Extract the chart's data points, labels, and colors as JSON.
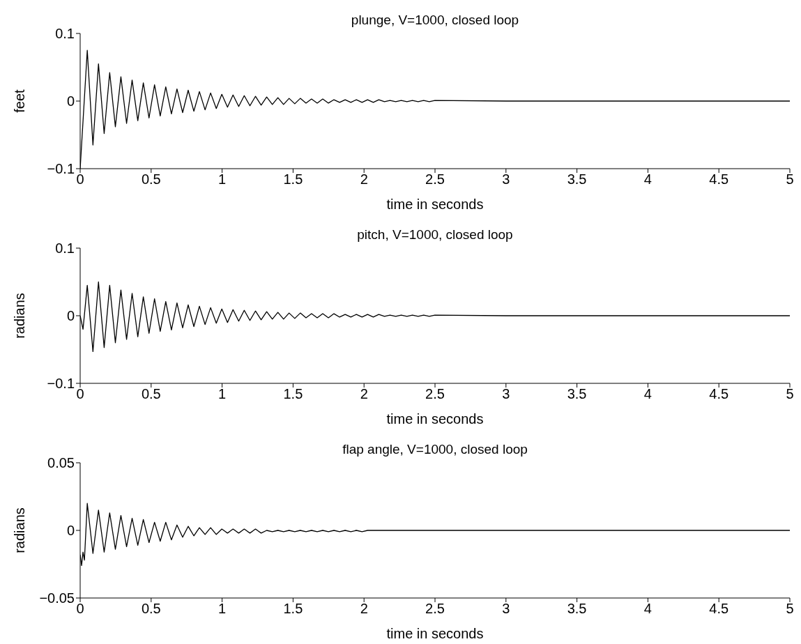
{
  "chart_data": [
    {
      "type": "line",
      "title": "plunge, V=1000, closed loop",
      "xlabel": "time in seconds",
      "ylabel": "feet",
      "xlim": [
        0,
        5
      ],
      "xticks": [
        0,
        0.5,
        1,
        1.5,
        2,
        2.5,
        3,
        3.5,
        4,
        4.5,
        5
      ],
      "ylim": [
        -0.1,
        0.1
      ],
      "yticks": [
        -0.1,
        0,
        0.1
      ],
      "series": [
        {
          "color": "#000000",
          "x": [
            0,
            0.05,
            0.09,
            0.129,
            0.169,
            0.208,
            0.248,
            0.287,
            0.327,
            0.366,
            0.406,
            0.445,
            0.485,
            0.524,
            0.564,
            0.603,
            0.643,
            0.682,
            0.722,
            0.761,
            0.801,
            0.84,
            0.88,
            0.919,
            0.959,
            0.998,
            1.038,
            1.077,
            1.117,
            1.156,
            1.196,
            1.235,
            1.275,
            1.314,
            1.354,
            1.393,
            1.433,
            1.472,
            1.512,
            1.551,
            1.591,
            1.63,
            1.67,
            1.709,
            1.749,
            1.788,
            1.828,
            1.867,
            1.907,
            1.946,
            1.986,
            2.025,
            2.065,
            2.104,
            2.144,
            2.183,
            2.223,
            2.262,
            2.302,
            2.341,
            2.381,
            2.42,
            2.46,
            2.499,
            3,
            5
          ],
          "values": [
            -0.1,
            0.075,
            -0.065,
            0.055,
            -0.048,
            0.042,
            -0.038,
            0.036,
            -0.033,
            0.031,
            -0.029,
            0.027,
            -0.025,
            0.024,
            -0.022,
            0.021,
            -0.019,
            0.018,
            -0.017,
            0.016,
            -0.015,
            0.014,
            -0.013,
            0.012,
            -0.011,
            0.01,
            -0.009,
            0.009,
            -0.008,
            0.008,
            -0.007,
            0.007,
            -0.006,
            0.006,
            -0.005,
            0.005,
            -0.005,
            0.004,
            -0.004,
            0.004,
            -0.003,
            0.003,
            -0.003,
            0.003,
            -0.003,
            0.002,
            -0.002,
            0.002,
            -0.002,
            0.002,
            -0.002,
            0.002,
            -0.002,
            0.002,
            -0.001,
            0.001,
            -0.001,
            0.001,
            -0.001,
            0.001,
            -0.001,
            0.001,
            -0.001,
            0.001,
            0,
            0
          ]
        }
      ]
    },
    {
      "type": "line",
      "title": "pitch, V=1000, closed loop",
      "xlabel": "time in seconds",
      "ylabel": "radians",
      "xlim": [
        0,
        5
      ],
      "xticks": [
        0,
        0.5,
        1,
        1.5,
        2,
        2.5,
        3,
        3.5,
        4,
        4.5,
        5
      ],
      "ylim": [
        -0.1,
        0.1
      ],
      "yticks": [
        -0.1,
        0,
        0.1
      ],
      "series": [
        {
          "color": "#000000",
          "x": [
            0,
            0.02,
            0.05,
            0.09,
            0.129,
            0.169,
            0.208,
            0.248,
            0.287,
            0.327,
            0.366,
            0.406,
            0.445,
            0.485,
            0.524,
            0.564,
            0.603,
            0.643,
            0.682,
            0.722,
            0.761,
            0.801,
            0.84,
            0.88,
            0.919,
            0.959,
            0.998,
            1.038,
            1.077,
            1.117,
            1.156,
            1.196,
            1.235,
            1.275,
            1.314,
            1.354,
            1.393,
            1.433,
            1.472,
            1.512,
            1.551,
            1.591,
            1.63,
            1.67,
            1.709,
            1.749,
            1.788,
            1.828,
            1.867,
            1.907,
            1.946,
            1.986,
            2.025,
            2.065,
            2.104,
            2.144,
            2.183,
            2.223,
            2.262,
            2.302,
            2.341,
            2.381,
            2.42,
            2.46,
            2.499,
            3,
            5
          ],
          "values": [
            0,
            -0.02,
            0.045,
            -0.053,
            0.05,
            -0.047,
            0.045,
            -0.04,
            0.038,
            -0.035,
            0.033,
            -0.031,
            0.028,
            -0.026,
            0.025,
            -0.023,
            0.021,
            -0.021,
            0.019,
            -0.018,
            0.016,
            -0.016,
            0.014,
            -0.013,
            0.012,
            -0.011,
            0.01,
            -0.01,
            0.009,
            -0.008,
            0.008,
            -0.007,
            0.007,
            -0.006,
            0.006,
            -0.005,
            0.005,
            -0.005,
            0.004,
            -0.004,
            0.004,
            -0.003,
            0.003,
            -0.003,
            0.003,
            -0.003,
            0.003,
            -0.002,
            0.002,
            -0.002,
            0.002,
            -0.002,
            0.002,
            -0.002,
            0.002,
            -0.001,
            0.001,
            -0.001,
            0.001,
            -0.001,
            0.001,
            -0.001,
            0.001,
            -0.001,
            0.001,
            0,
            0
          ]
        }
      ]
    },
    {
      "type": "line",
      "title": "flap angle, V=1000, closed loop",
      "xlabel": "time in seconds",
      "ylabel": "radians",
      "xlim": [
        0,
        5
      ],
      "xticks": [
        0,
        0.5,
        1,
        1.5,
        2,
        2.5,
        3,
        3.5,
        4,
        4.5,
        5
      ],
      "ylim": [
        -0.05,
        0.05
      ],
      "yticks": [
        -0.05,
        0,
        0.05
      ],
      "series": [
        {
          "color": "#000000",
          "x": [
            0,
            0.01,
            0.02,
            0.03,
            0.05,
            0.09,
            0.129,
            0.169,
            0.208,
            0.248,
            0.287,
            0.327,
            0.366,
            0.406,
            0.445,
            0.485,
            0.524,
            0.564,
            0.603,
            0.643,
            0.682,
            0.722,
            0.761,
            0.801,
            0.84,
            0.88,
            0.919,
            0.959,
            0.998,
            1.038,
            1.077,
            1.117,
            1.156,
            1.196,
            1.235,
            1.275,
            1.314,
            1.354,
            1.393,
            1.433,
            1.472,
            1.512,
            1.551,
            1.591,
            1.63,
            1.67,
            1.709,
            1.749,
            1.788,
            1.828,
            1.867,
            1.907,
            1.946,
            1.986,
            2.025,
            5
          ],
          "values": [
            -0.018,
            -0.026,
            -0.016,
            -0.022,
            0.02,
            -0.017,
            0.015,
            -0.016,
            0.013,
            -0.014,
            0.011,
            -0.012,
            0.009,
            -0.011,
            0.008,
            -0.009,
            0.006,
            -0.008,
            0.006,
            -0.007,
            0.004,
            -0.005,
            0.003,
            -0.004,
            0.002,
            -0.003,
            0.002,
            -0.003,
            0.001,
            -0.002,
            0.001,
            -0.002,
            0.001,
            -0.002,
            0.001,
            -0.002,
            0,
            -0.001,
            0,
            -0.001,
            0,
            -0.001,
            0,
            -0.001,
            0,
            -0.001,
            0,
            -0.001,
            0,
            -0.001,
            0,
            -0.001,
            0,
            -0.001,
            0,
            0
          ]
        }
      ]
    }
  ]
}
